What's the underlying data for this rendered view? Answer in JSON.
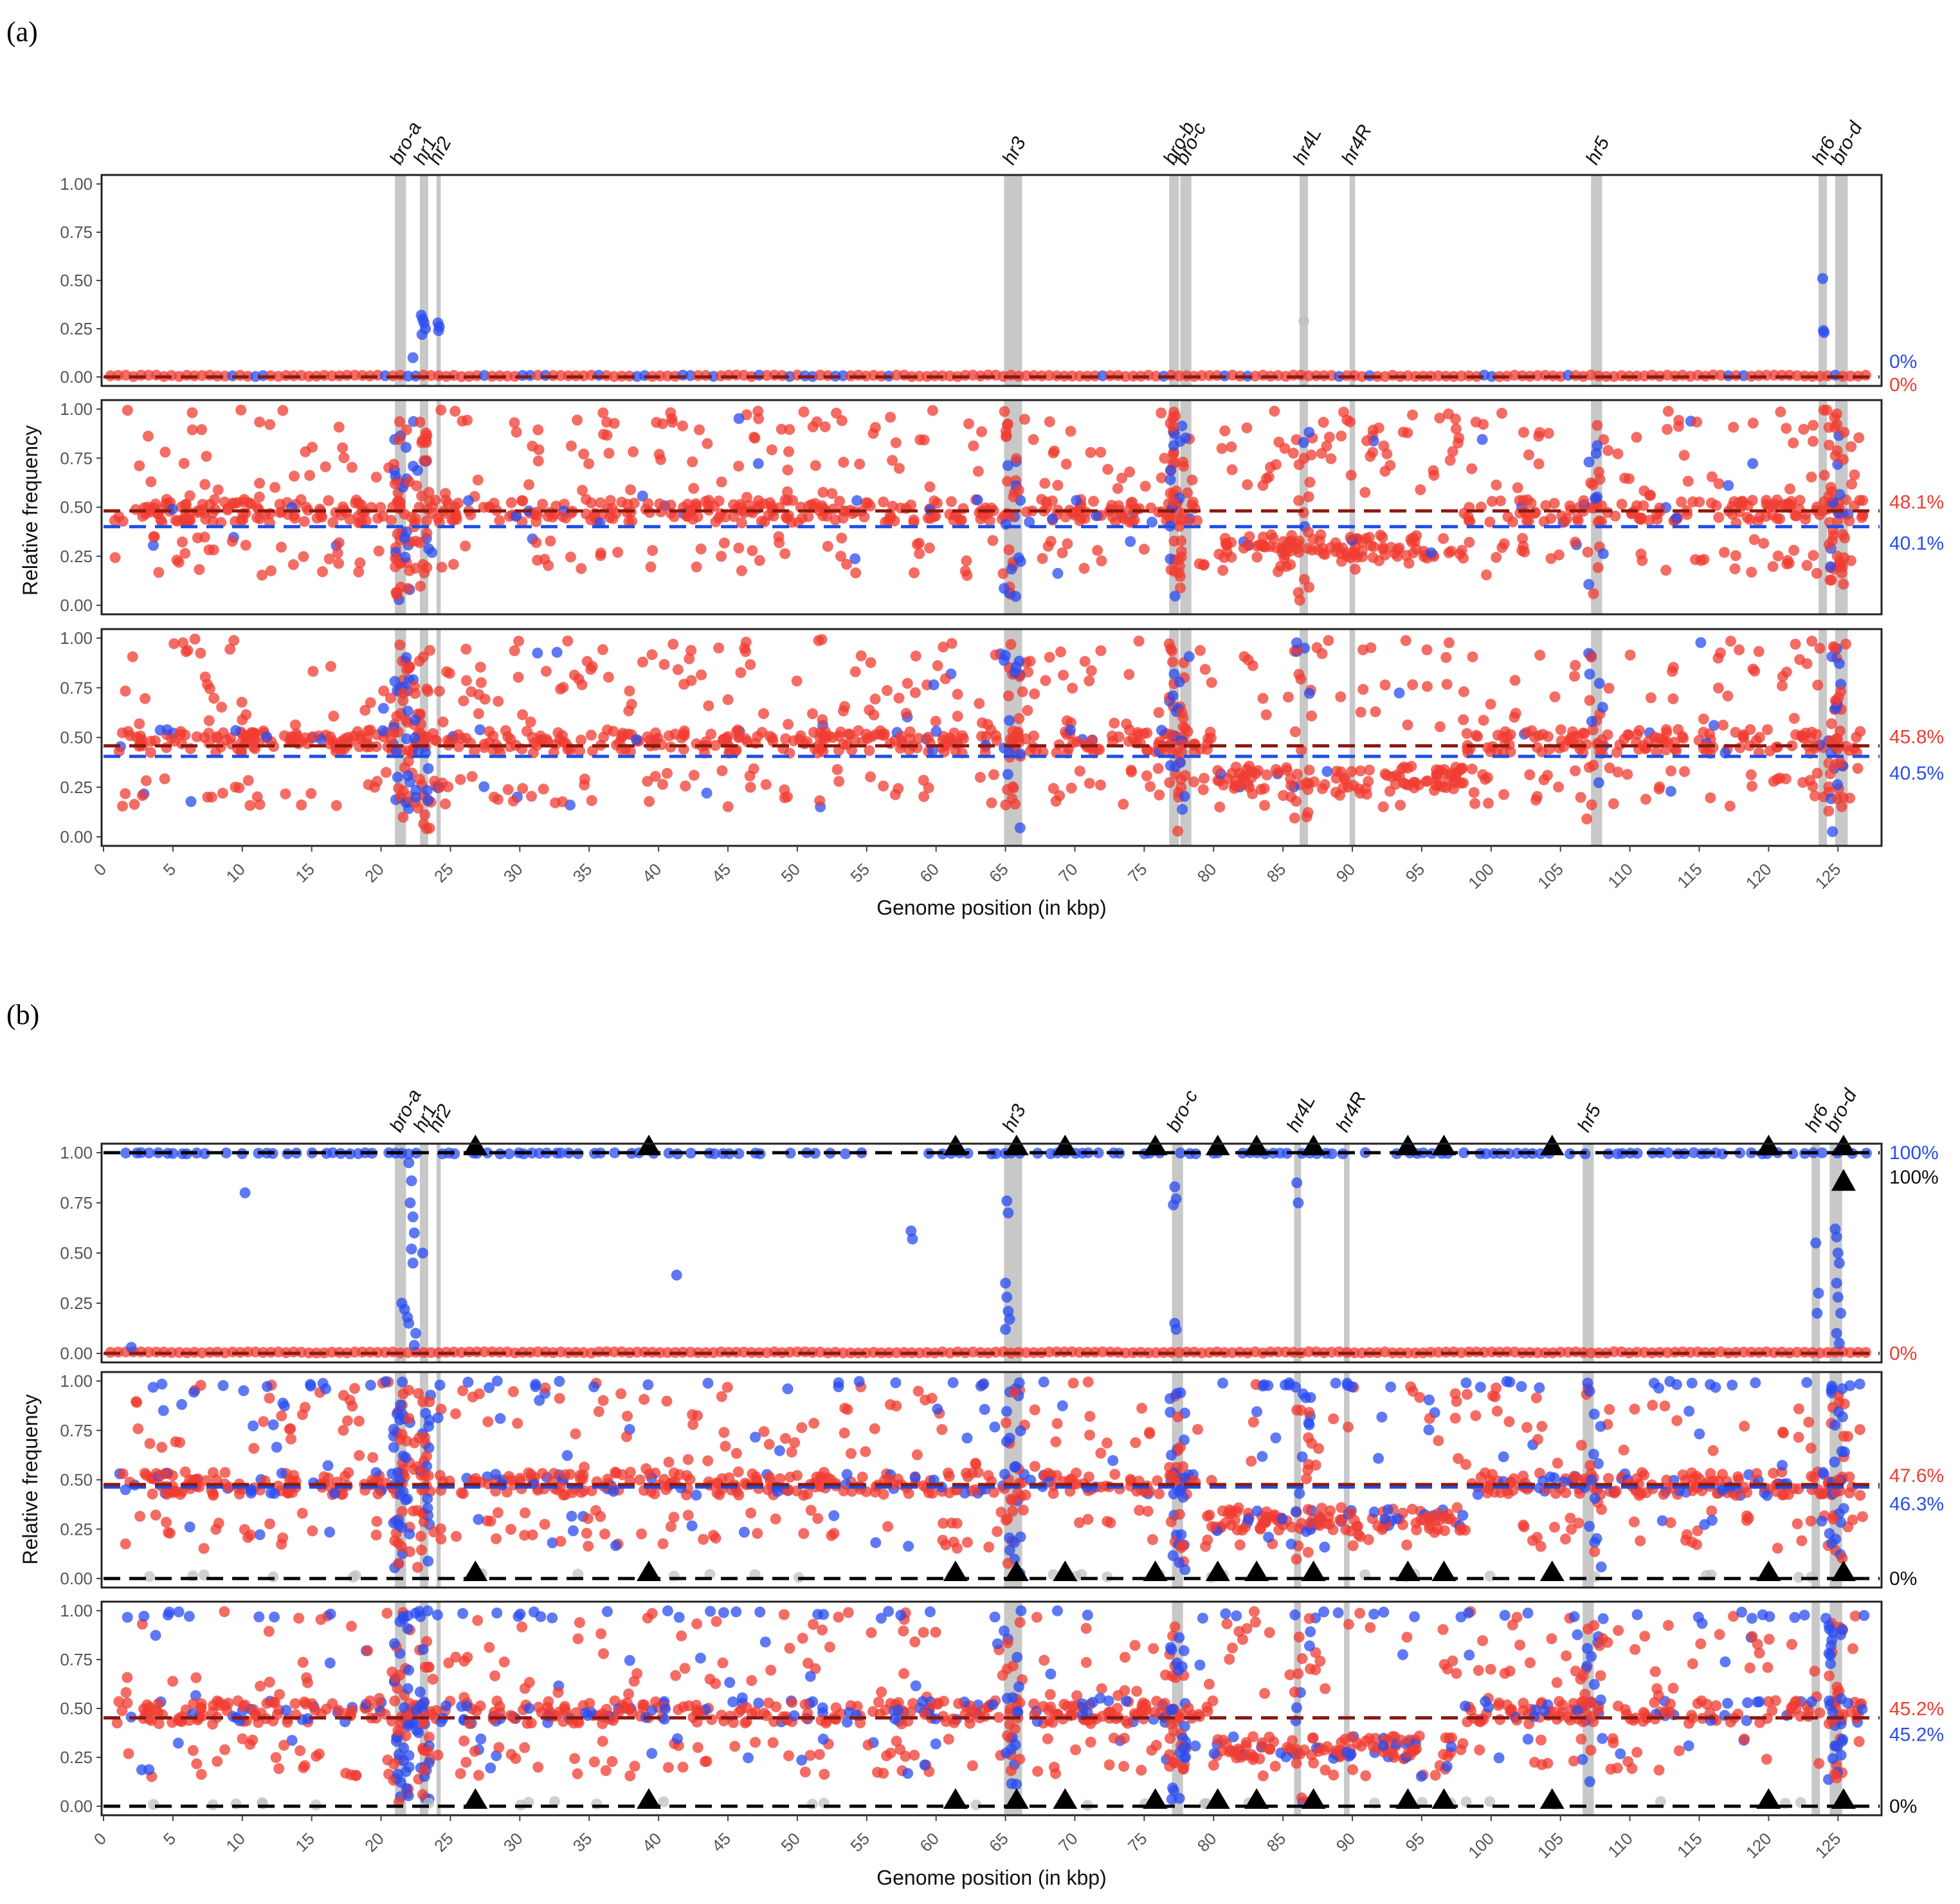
{
  "panel_labels": [
    "(a)",
    "(b)"
  ],
  "chart_data": [
    {
      "id": "a",
      "type": "scatter",
      "xlabel": "Genome position (in kbp)",
      "ylabel": "Relative frequency",
      "xlim": [
        0,
        128
      ],
      "ylim": [
        0,
        1
      ],
      "xticks": [
        0,
        5,
        10,
        15,
        20,
        25,
        30,
        35,
        40,
        45,
        50,
        55,
        60,
        65,
        70,
        75,
        80,
        85,
        90,
        95,
        100,
        105,
        110,
        115,
        120,
        125
      ],
      "yticks": [
        "0.00",
        "0.25",
        "0.50",
        "0.75",
        "1.00"
      ],
      "regions": [
        {
          "label": "bro-a",
          "start": 21.0,
          "end": 21.8
        },
        {
          "label": "hr1",
          "start": 22.8,
          "end": 23.4
        },
        {
          "label": "hr2",
          "start": 24.0,
          "end": 24.3
        },
        {
          "label": "hr3",
          "start": 64.9,
          "end": 66.2
        },
        {
          "label": "bro-b",
          "start": 76.8,
          "end": 77.5
        },
        {
          "label": "bro-c",
          "start": 77.6,
          "end": 78.4
        },
        {
          "label": "hr4L",
          "start": 86.2,
          "end": 86.8
        },
        {
          "label": "hr4R",
          "start": 89.8,
          "end": 90.2
        },
        {
          "label": "hr5",
          "start": 107.2,
          "end": 108.0
        },
        {
          "label": "hr6",
          "start": 123.6,
          "end": 124.2
        },
        {
          "label": "bro-d",
          "start": 124.8,
          "end": 125.7
        }
      ],
      "panels": [
        {
          "red_label": "0%",
          "blue_label": "0%",
          "red_line": 0.0,
          "blue_line": 0.0,
          "mode": "zero",
          "blue_points": [
            [
              22.3,
              0.1
            ],
            [
              22.9,
              0.32
            ],
            [
              23.0,
              0.3
            ],
            [
              23.1,
              0.28
            ],
            [
              22.95,
              0.22
            ],
            [
              23.2,
              0.25
            ],
            [
              24.1,
              0.28
            ],
            [
              24.2,
              0.26
            ],
            [
              24.15,
              0.24
            ],
            [
              123.9,
              0.51
            ],
            [
              123.95,
              0.24
            ],
            [
              124.0,
              0.23
            ]
          ],
          "grey_points": [
            [
              86.5,
              0.29
            ]
          ]
        },
        {
          "red_label": "48.1%",
          "blue_label": "40.1%",
          "red_line": 0.481,
          "blue_line": 0.401,
          "mode": "mid",
          "seed": 11
        },
        {
          "red_label": "45.8%",
          "blue_label": "40.5%",
          "red_line": 0.458,
          "blue_line": 0.405,
          "mode": "mid",
          "seed": 23
        }
      ]
    },
    {
      "id": "b",
      "type": "scatter",
      "xlabel": "Genome position (in kbp)",
      "ylabel": "Relative frequency",
      "xlim": [
        0,
        128
      ],
      "ylim": [
        0,
        1
      ],
      "xticks": [
        0,
        5,
        10,
        15,
        20,
        25,
        30,
        35,
        40,
        45,
        50,
        55,
        60,
        65,
        70,
        75,
        80,
        85,
        90,
        95,
        100,
        105,
        110,
        115,
        120,
        125
      ],
      "yticks": [
        "0.00",
        "0.25",
        "0.50",
        "0.75",
        "1.00"
      ],
      "regions": [
        {
          "label": "bro-a",
          "start": 21.0,
          "end": 21.8
        },
        {
          "label": "hr1",
          "start": 22.8,
          "end": 23.4
        },
        {
          "label": "hr2",
          "start": 24.0,
          "end": 24.3
        },
        {
          "label": "hr3",
          "start": 64.9,
          "end": 66.2
        },
        {
          "label": "bro-c",
          "start": 77.0,
          "end": 77.8
        },
        {
          "label": "hr4L",
          "start": 85.8,
          "end": 86.3
        },
        {
          "label": "hr4R",
          "start": 89.4,
          "end": 89.8
        },
        {
          "label": "hr5",
          "start": 106.6,
          "end": 107.4
        },
        {
          "label": "hr6",
          "start": 123.1,
          "end": 123.7
        },
        {
          "label": "bro-d",
          "start": 124.4,
          "end": 125.3
        }
      ],
      "triangles": [
        26.8,
        39.3,
        61.4,
        65.8,
        69.3,
        75.8,
        80.3,
        83.1,
        87.2,
        94.0,
        96.6,
        104.4,
        120.0,
        125.4
      ],
      "panels": [
        {
          "red_label": "0%",
          "blue_label": "100%",
          "black_label": "100%",
          "red_line": 0.0,
          "blue_line": 1.0,
          "black_line": 1.0,
          "mode": "binary",
          "blue_points": [
            [
              2.0,
              0.03
            ],
            [
              10.2,
              0.8
            ],
            [
              21.5,
              0.25
            ],
            [
              21.7,
              0.22
            ],
            [
              21.9,
              0.18
            ],
            [
              22.0,
              0.95
            ],
            [
              22.2,
              0.86
            ],
            [
              22.1,
              0.75
            ],
            [
              22.3,
              0.68
            ],
            [
              22.4,
              0.6
            ],
            [
              22.2,
              0.52
            ],
            [
              22.3,
              0.45
            ],
            [
              22.0,
              0.15
            ],
            [
              22.5,
              0.1
            ],
            [
              22.4,
              0.04
            ],
            [
              23.0,
              0.5
            ],
            [
              41.3,
              0.39
            ],
            [
              58.2,
              0.61
            ],
            [
              58.3,
              0.57
            ],
            [
              65.1,
              0.76
            ],
            [
              65.2,
              0.7
            ],
            [
              65.0,
              0.35
            ],
            [
              65.1,
              0.28
            ],
            [
              65.2,
              0.21
            ],
            [
              65.3,
              0.17
            ],
            [
              65.0,
              0.12
            ],
            [
              77.2,
              0.83
            ],
            [
              77.3,
              0.77
            ],
            [
              77.1,
              0.74
            ],
            [
              77.2,
              0.15
            ],
            [
              77.3,
              0.12
            ],
            [
              86.0,
              0.85
            ],
            [
              86.1,
              0.75
            ],
            [
              123.4,
              0.55
            ],
            [
              123.6,
              0.3
            ],
            [
              123.5,
              0.2
            ],
            [
              124.8,
              0.62
            ],
            [
              124.9,
              0.58
            ],
            [
              125.0,
              0.5
            ],
            [
              125.1,
              0.45
            ],
            [
              124.9,
              0.35
            ],
            [
              125.0,
              0.28
            ],
            [
              125.2,
              0.2
            ],
            [
              124.9,
              0.1
            ],
            [
              125.1,
              0.05
            ]
          ]
        },
        {
          "red_label": "47.6%",
          "blue_label": "46.3%",
          "black_label": "0%",
          "red_line": 0.476,
          "blue_line": 0.463,
          "black_line": 0.0,
          "mode": "midblue",
          "seed": 37
        },
        {
          "red_label": "45.2%",
          "blue_label": "45.2%",
          "black_label": "0%",
          "red_line": 0.452,
          "blue_line": 0.452,
          "black_line": 0.0,
          "mode": "midblue",
          "seed": 53
        }
      ]
    }
  ],
  "colors": {
    "red": "#f03c32",
    "blue": "#2a4cf0",
    "darkred": "#8b1a10",
    "blueline": "#1e4ee6",
    "region": "#c8c8c8",
    "grey": "#c0c0c0"
  }
}
